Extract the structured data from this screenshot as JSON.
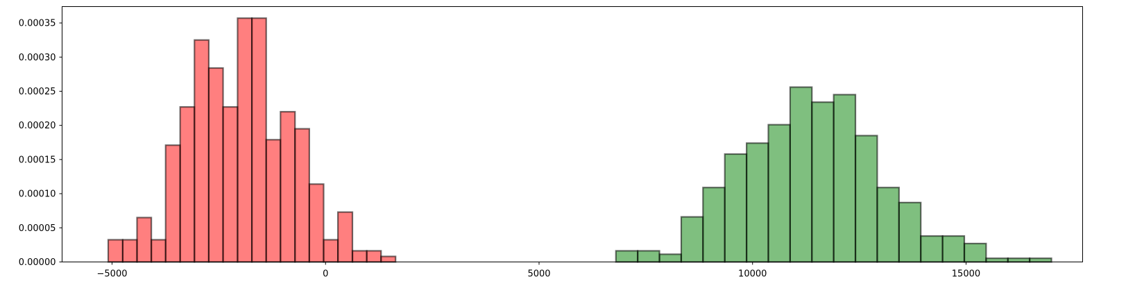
{
  "chart_data": {
    "type": "histogram",
    "title": "",
    "xlabel": "",
    "ylabel": "",
    "xlim": [
      -6170,
      17730
    ],
    "ylim": [
      0,
      0.00037395
    ],
    "grid": false,
    "legend": "none",
    "x_ticks": [
      {
        "value": -5000,
        "label": "−5000"
      },
      {
        "value": 0,
        "label": "0"
      },
      {
        "value": 5000,
        "label": "5000"
      },
      {
        "value": 10000,
        "label": "10000"
      },
      {
        "value": 15000,
        "label": "15000"
      }
    ],
    "y_ticks": [
      {
        "value": 0,
        "label": "0.00000"
      },
      {
        "value": 5e-05,
        "label": "0.00005"
      },
      {
        "value": 0.0001,
        "label": "0.00010"
      },
      {
        "value": 0.00015,
        "label": "0.00015"
      },
      {
        "value": 0.0002,
        "label": "0.00020"
      },
      {
        "value": 0.00025,
        "label": "0.00025"
      },
      {
        "value": 0.0003,
        "label": "0.00030"
      },
      {
        "value": 0.00035,
        "label": "0.00035"
      }
    ],
    "series": [
      {
        "color": "#ff0000",
        "alpha": 0.5,
        "edgecolor": "#000000",
        "bins": [
          {
            "x0": -5090,
            "x1": -4750,
            "density": 3.25e-05
          },
          {
            "x0": -4750,
            "x1": -4415,
            "density": 3.25e-05
          },
          {
            "x0": -4415,
            "x1": -4080,
            "density": 6.5e-05
          },
          {
            "x0": -4080,
            "x1": -3745,
            "density": 3.25e-05
          },
          {
            "x0": -3745,
            "x1": -3405,
            "density": 0.000171
          },
          {
            "x0": -3405,
            "x1": -3070,
            "density": 0.000227
          },
          {
            "x0": -3070,
            "x1": -2735,
            "density": 0.000325
          },
          {
            "x0": -2735,
            "x1": -2400,
            "density": 0.000284
          },
          {
            "x0": -2400,
            "x1": -2060,
            "density": 0.000227
          },
          {
            "x0": -2060,
            "x1": -1725,
            "density": 0.000357
          },
          {
            "x0": -1725,
            "x1": -1390,
            "density": 0.000357
          },
          {
            "x0": -1390,
            "x1": -1055,
            "density": 0.000179
          },
          {
            "x0": -1055,
            "x1": -715,
            "density": 0.00022
          },
          {
            "x0": -715,
            "x1": -380,
            "density": 0.000195
          },
          {
            "x0": -380,
            "x1": -45,
            "density": 0.000114
          },
          {
            "x0": -45,
            "x1": 290,
            "density": 3.25e-05
          },
          {
            "x0": 290,
            "x1": 630,
            "density": 7.3e-05
          },
          {
            "x0": 630,
            "x1": 965,
            "density": 1.63e-05
          },
          {
            "x0": 965,
            "x1": 1300,
            "density": 1.63e-05
          },
          {
            "x0": 1300,
            "x1": 1640,
            "density": 8.1e-06
          }
        ]
      },
      {
        "color": "#008000",
        "alpha": 0.5,
        "edgecolor": "#000000",
        "bins": [
          {
            "x0": 6800,
            "x1": 7310,
            "density": 1.63e-05
          },
          {
            "x0": 7310,
            "x1": 7820,
            "density": 1.63e-05
          },
          {
            "x0": 7820,
            "x1": 8330,
            "density": 1.13e-05
          },
          {
            "x0": 8330,
            "x1": 8840,
            "density": 6.6e-05
          },
          {
            "x0": 8840,
            "x1": 9350,
            "density": 0.000109
          },
          {
            "x0": 9350,
            "x1": 9860,
            "density": 0.000158
          },
          {
            "x0": 9860,
            "x1": 10370,
            "density": 0.000174
          },
          {
            "x0": 10370,
            "x1": 10880,
            "density": 0.000201
          },
          {
            "x0": 10880,
            "x1": 11390,
            "density": 0.000256
          },
          {
            "x0": 11390,
            "x1": 11900,
            "density": 0.000234
          },
          {
            "x0": 11900,
            "x1": 12410,
            "density": 0.000245
          },
          {
            "x0": 12410,
            "x1": 12920,
            "density": 0.000185
          },
          {
            "x0": 12920,
            "x1": 13430,
            "density": 0.000109
          },
          {
            "x0": 13430,
            "x1": 13940,
            "density": 8.7e-05
          },
          {
            "x0": 13940,
            "x1": 14450,
            "density": 3.8e-05
          },
          {
            "x0": 14450,
            "x1": 14960,
            "density": 3.8e-05
          },
          {
            "x0": 14960,
            "x1": 15470,
            "density": 2.7e-05
          },
          {
            "x0": 15470,
            "x1": 15980,
            "density": 5.4e-06
          },
          {
            "x0": 15980,
            "x1": 16490,
            "density": 5.4e-06
          },
          {
            "x0": 16490,
            "x1": 17000,
            "density": 5.4e-06
          }
        ]
      }
    ]
  }
}
